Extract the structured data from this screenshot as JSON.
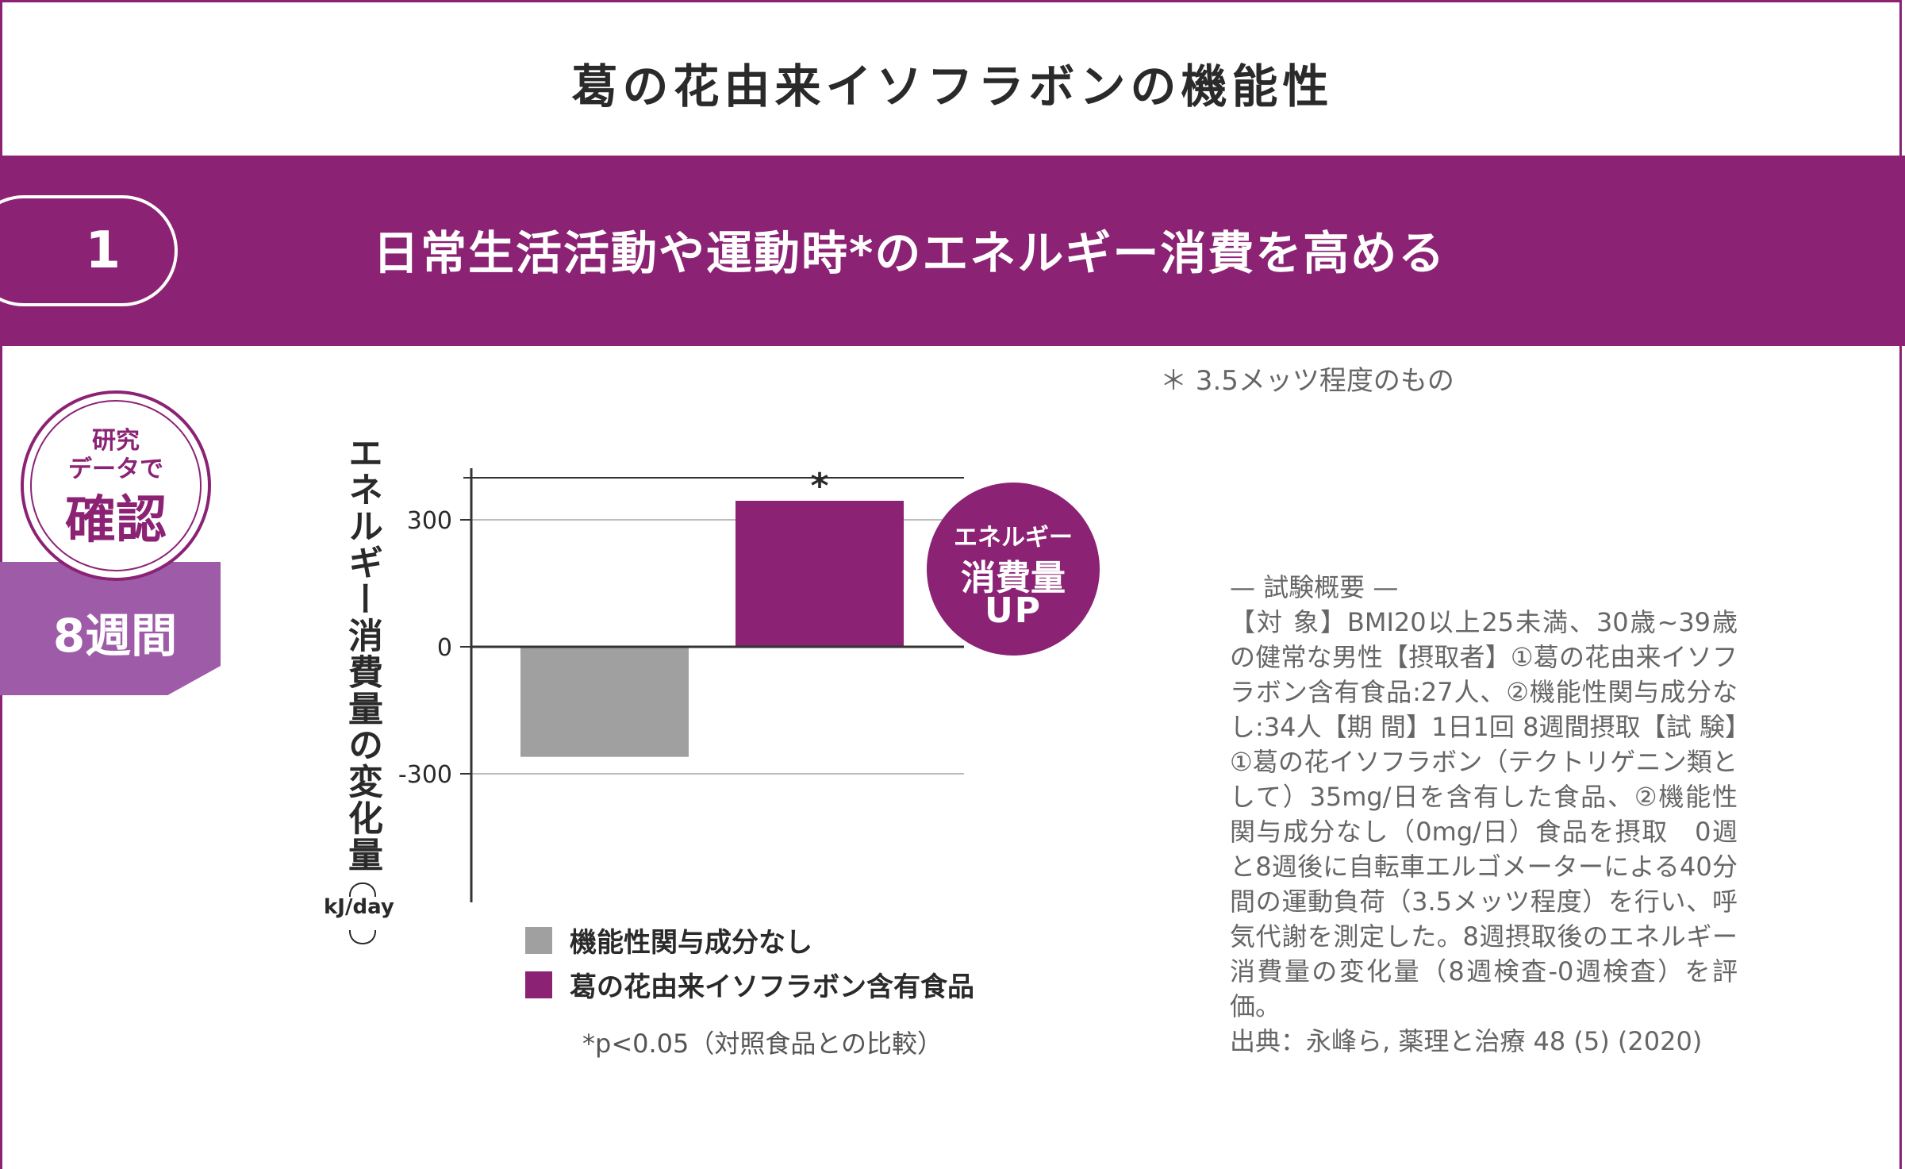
{
  "header": {
    "title": "葛の花由来イソフラボンの機能性"
  },
  "banner": {
    "number": "1",
    "heading": "日常生活活動や運動時*のエネルギー消費を高める"
  },
  "footnote_top": "＊ 3.5メッツ程度のもの",
  "seal": {
    "line1": "研究",
    "line2": "データで",
    "line3": "確認"
  },
  "duration_tag": "8週間",
  "badge": {
    "line1": "エネルギー",
    "line2": "消費量",
    "line3": "UP"
  },
  "significance_note": "*p<0.05（対照食品との比較）",
  "summary": {
    "heading": "— 試験概要 —",
    "body": "【対 象】BMI20以上25未満、30歳~39歳の健常な男性【摂取者】①葛の花由来イソフラボン含有食品:27人、②機能性関与成分なし:34人【期 間】1日1回 8週間摂取【試 験】①葛の花イソフラボン（テクトリゲニン類として）35mg/日を含有した食品、②機能性関与成分なし（0mg/日）食品を摂取　0週と8週後に自転車エルゴメーターによる40分間の運動負荷（3.5メッツ程度）を行い、呼気代謝を測定した。8週摂取後のエネルギー消費量の変化量（8週検査-0週検査）を評価。",
    "source": "出典：永峰ら, 薬理と治療 48 (5) (2020)"
  },
  "chart_data": {
    "type": "bar",
    "ylabel": "エネルギー消費量の変化量",
    "yunit": "kJ/day",
    "ylim": [
      -500,
      340
    ],
    "yticks": [
      300,
      0,
      -300
    ],
    "ytick_labels": [
      "300",
      "0",
      "-300"
    ],
    "grid": true,
    "legend_position": "bottom",
    "series": [
      {
        "name": "機能性関与成分なし",
        "value": -260,
        "color": "#a0a0a0",
        "annotation": ""
      },
      {
        "name": "葛の花由来イソフラボン含有食品",
        "value": 345,
        "color": "#8b2274",
        "annotation": "*"
      }
    ]
  }
}
